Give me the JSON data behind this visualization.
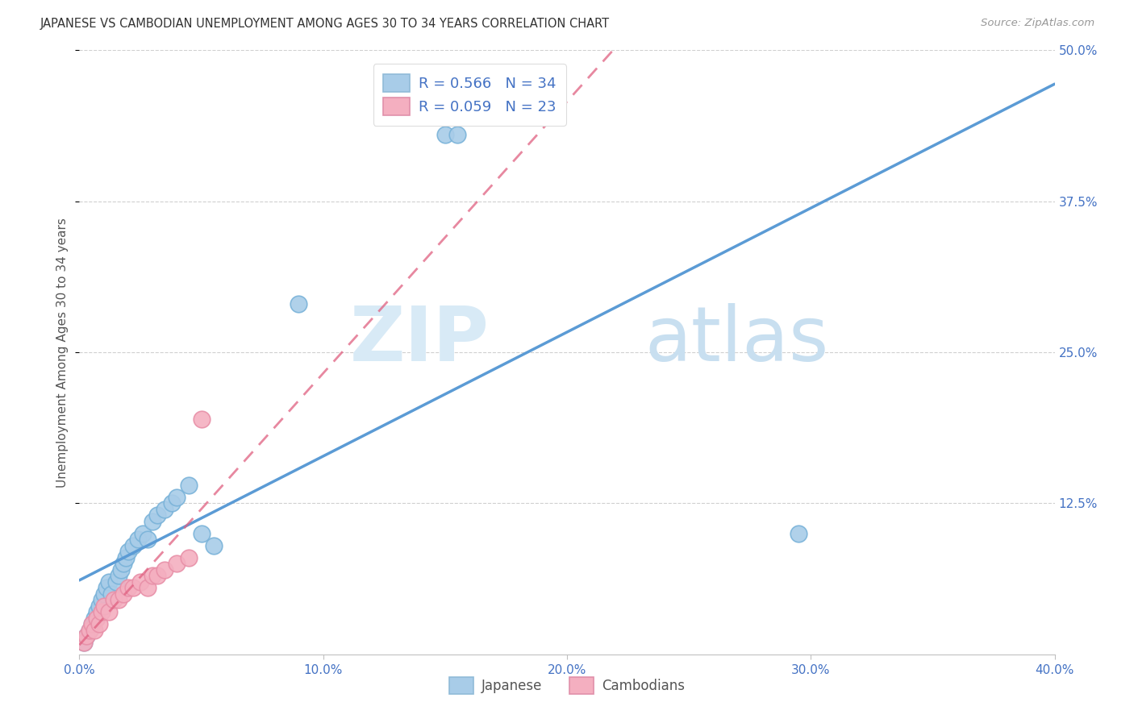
{
  "title": "JAPANESE VS CAMBODIAN UNEMPLOYMENT AMONG AGES 30 TO 34 YEARS CORRELATION CHART",
  "source": "Source: ZipAtlas.com",
  "xlabel": "",
  "ylabel": "Unemployment Among Ages 30 to 34 years",
  "xlim": [
    0.0,
    0.4
  ],
  "ylim": [
    0.0,
    0.5
  ],
  "xtick_labels": [
    "0.0%",
    "10.0%",
    "20.0%",
    "30.0%",
    "40.0%"
  ],
  "xtick_vals": [
    0.0,
    0.1,
    0.2,
    0.3,
    0.4
  ],
  "ytick_labels": [
    "50.0%",
    "37.5%",
    "25.0%",
    "12.5%"
  ],
  "ytick_vals": [
    0.5,
    0.375,
    0.25,
    0.125
  ],
  "japanese_color": "#a8cce8",
  "cambodian_color": "#f4afc0",
  "japanese_R": 0.566,
  "japanese_N": 34,
  "cambodian_R": 0.059,
  "cambodian_N": 23,
  "japanese_line_color": "#5b9bd5",
  "cambodian_line_color": "#e06080",
  "legend_text_color": "#4472c4",
  "watermark_zip": "ZIP",
  "watermark_atlas": "atlas",
  "japanese_points_x": [
    0.002,
    0.003,
    0.004,
    0.005,
    0.006,
    0.007,
    0.008,
    0.009,
    0.01,
    0.011,
    0.012,
    0.013,
    0.015,
    0.016,
    0.017,
    0.018,
    0.019,
    0.02,
    0.022,
    0.024,
    0.026,
    0.028,
    0.03,
    0.032,
    0.035,
    0.038,
    0.04,
    0.045,
    0.05,
    0.055,
    0.09,
    0.15,
    0.155,
    0.295
  ],
  "japanese_points_y": [
    0.01,
    0.015,
    0.02,
    0.025,
    0.03,
    0.035,
    0.04,
    0.045,
    0.05,
    0.055,
    0.06,
    0.05,
    0.06,
    0.065,
    0.07,
    0.075,
    0.08,
    0.085,
    0.09,
    0.095,
    0.1,
    0.095,
    0.11,
    0.115,
    0.12,
    0.125,
    0.13,
    0.14,
    0.1,
    0.09,
    0.29,
    0.43,
    0.43,
    0.1
  ],
  "cambodian_points_x": [
    0.002,
    0.003,
    0.004,
    0.005,
    0.006,
    0.007,
    0.008,
    0.009,
    0.01,
    0.012,
    0.014,
    0.016,
    0.018,
    0.02,
    0.022,
    0.025,
    0.028,
    0.03,
    0.032,
    0.035,
    0.04,
    0.045,
    0.05
  ],
  "cambodian_points_y": [
    0.01,
    0.015,
    0.02,
    0.025,
    0.02,
    0.03,
    0.025,
    0.035,
    0.04,
    0.035,
    0.045,
    0.045,
    0.05,
    0.055,
    0.055,
    0.06,
    0.055,
    0.065,
    0.065,
    0.07,
    0.075,
    0.08,
    0.195
  ]
}
